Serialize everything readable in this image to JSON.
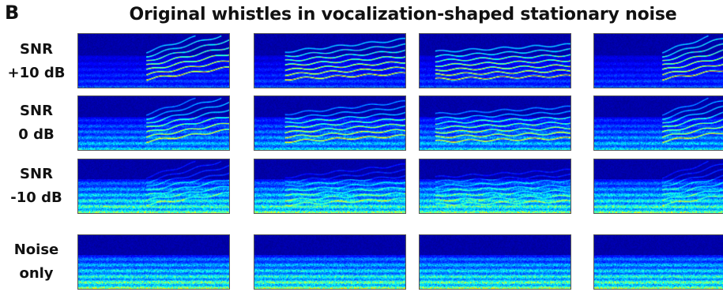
{
  "panel_letter": "B",
  "title": "Original whistles in vocalization-shaped stationary noise",
  "rows": [
    {
      "label_line1": "SNR",
      "label_line2": "+10 dB",
      "snr_db": 10,
      "noise_level": 0.35,
      "whistle_level": 1.0
    },
    {
      "label_line1": "SNR",
      "label_line2": "0 dB",
      "snr_db": 0,
      "noise_level": 0.65,
      "whistle_level": 0.75
    },
    {
      "label_line1": "SNR",
      "label_line2": "-10 dB",
      "snr_db": -10,
      "noise_level": 0.95,
      "whistle_level": 0.35
    },
    {
      "label_line1": "Noise",
      "label_line2": "only",
      "snr_db": null,
      "noise_level": 1.0,
      "whistle_level": 0.0
    }
  ],
  "columns": [
    {
      "whistle_start": 0.45,
      "whistle_rise": 0.7
    },
    {
      "whistle_start": 0.2,
      "whistle_rise": 0.35
    },
    {
      "whistle_start": 0.1,
      "whistle_rise": 0.2
    },
    {
      "whistle_start": 0.45,
      "whistle_rise": 0.75
    }
  ],
  "colormap": "jet"
}
